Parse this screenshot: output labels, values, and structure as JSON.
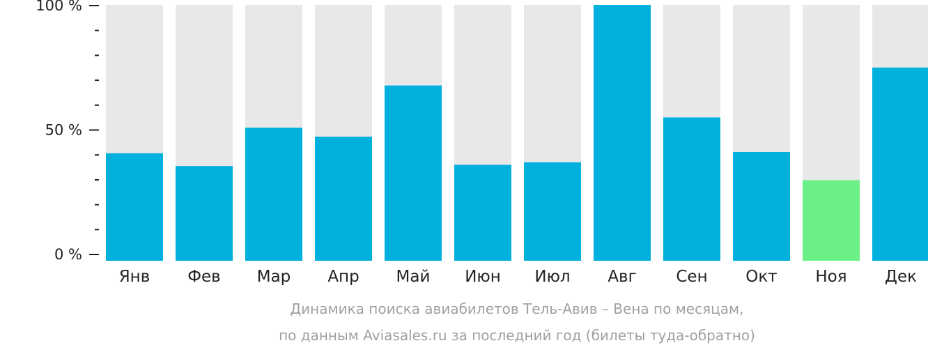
{
  "chart_data": {
    "type": "bar",
    "categories": [
      "Янв",
      "Фев",
      "Мар",
      "Апр",
      "Май",
      "Июн",
      "Июл",
      "Авг",
      "Сен",
      "Окт",
      "Ноя",
      "Дек"
    ],
    "values": [
      42,
      37,
      52,
      48.5,
      68.5,
      37.5,
      38.5,
      100,
      56,
      42.5,
      31.5,
      75.5
    ],
    "ylim": [
      0,
      100
    ],
    "yticks": [
      {
        "value": 100,
        "label": "100 %"
      },
      {
        "value": 50,
        "label": "50 %"
      },
      {
        "value": 0,
        "label": "0 %"
      }
    ],
    "minor_tick_step": 10,
    "highlight_index": 10,
    "colors": {
      "bar": "#00b0dd",
      "highlight": "#6bf087",
      "background_bar": "#e8e8e8",
      "axis": "#222222",
      "caption": "#a0a0a0"
    },
    "caption": [
      "Динамика поиска авиабилетов Тель-Авив – Вена по месяцам,",
      "по данным Aviasales.ru за последний год (билеты туда-обратно)"
    ]
  }
}
